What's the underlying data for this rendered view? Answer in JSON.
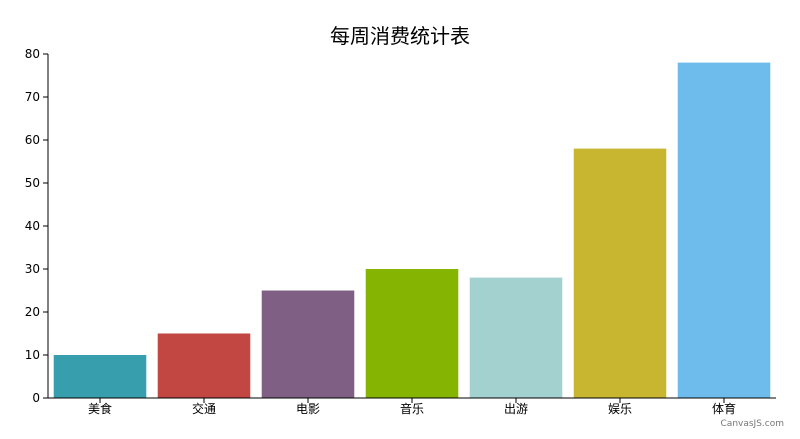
{
  "chart_data": {
    "type": "bar",
    "title": "每周消费统计表",
    "categories": [
      "美食",
      "交通",
      "电影",
      "音乐",
      "出游",
      "娱乐",
      "体育"
    ],
    "values": [
      10,
      15,
      25,
      30,
      28,
      58,
      78
    ],
    "colors": [
      "#369EAD",
      "#C24642",
      "#7F6084",
      "#86B402",
      "#A2D1CF",
      "#C8B631",
      "#6DBCEB"
    ],
    "xlabel": "",
    "ylabel": "",
    "ylim": [
      0,
      80
    ],
    "yticks": [
      0,
      10,
      20,
      30,
      40,
      50,
      60,
      70,
      80
    ],
    "grid": false,
    "legend": "none"
  },
  "credit": "CanvasJS.com"
}
